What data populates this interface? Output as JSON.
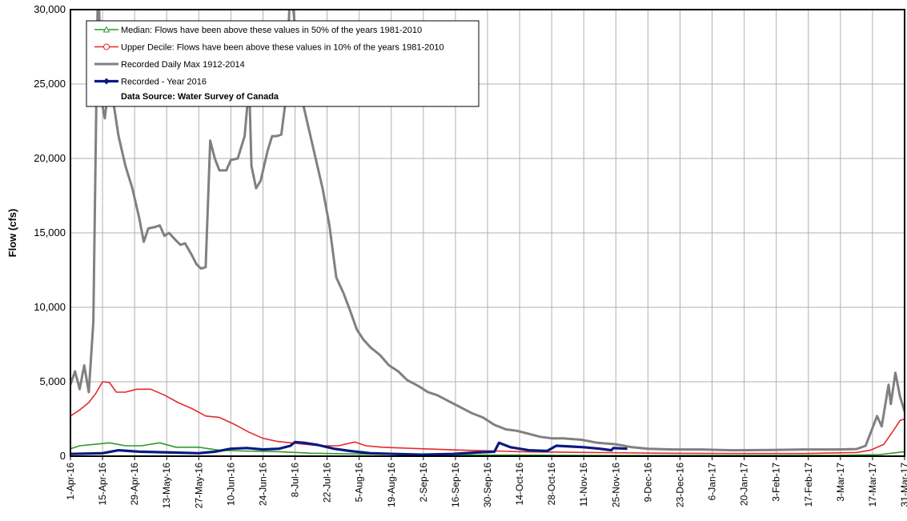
{
  "chart_data": {
    "type": "line",
    "ylabel": "Flow (cfs)",
    "annotation": "Data Source: Water Survey of Canada",
    "xlim": [
      "2016-04-01",
      "2017-03-31"
    ],
    "ylim": [
      0,
      30000
    ],
    "grid": true,
    "legend": "upper left",
    "yticks": [
      0,
      {
        "value": 5000,
        "label": "5,000"
      },
      {
        "value": 10000,
        "label": "10,000"
      },
      {
        "value": 15000,
        "label": "15,000"
      },
      {
        "value": 20000,
        "label": "20,000"
      },
      {
        "value": 25000,
        "label": "25,000"
      },
      {
        "value": 30000,
        "label": "30,000"
      }
    ],
    "xticks": [
      {
        "value": "2016-04-01",
        "label": "1-Apr-16"
      },
      {
        "value": "2016-04-15",
        "label": "15-Apr-16"
      },
      {
        "value": "2016-04-29",
        "label": "29-Apr-16"
      },
      {
        "value": "2016-05-13",
        "label": "13-May-16"
      },
      {
        "value": "2016-05-27",
        "label": "27-May-16"
      },
      {
        "value": "2016-06-10",
        "label": "10-Jun-16"
      },
      {
        "value": "2016-06-24",
        "label": "24-Jun-16"
      },
      {
        "value": "2016-07-08",
        "label": "8-Jul-16"
      },
      {
        "value": "2016-07-22",
        "label": "22-Jul-16"
      },
      {
        "value": "2016-08-05",
        "label": "5-Aug-16"
      },
      {
        "value": "2016-08-19",
        "label": "19-Aug-16"
      },
      {
        "value": "2016-09-02",
        "label": "2-Sep-16"
      },
      {
        "value": "2016-09-16",
        "label": "16-Sep-16"
      },
      {
        "value": "2016-09-30",
        "label": "30-Sep-16"
      },
      {
        "value": "2016-10-14",
        "label": "14-Oct-16"
      },
      {
        "value": "2016-10-28",
        "label": "28-Oct-16"
      },
      {
        "value": "2016-11-11",
        "label": "11-Nov-16"
      },
      {
        "value": "2016-11-25",
        "label": "25-Nov-16"
      },
      {
        "value": "2016-12-09",
        "label": "9-Dec-16"
      },
      {
        "value": "2016-12-23",
        "label": "23-Dec-16"
      },
      {
        "value": "2017-01-06",
        "label": "6-Jan-17"
      },
      {
        "value": "2017-01-20",
        "label": "20-Jan-17"
      },
      {
        "value": "2017-02-03",
        "label": "3-Feb-17"
      },
      {
        "value": "2017-02-17",
        "label": "17-Feb-17"
      },
      {
        "value": "2017-03-03",
        "label": "3-Mar-17"
      },
      {
        "value": "2017-03-17",
        "label": "17-Mar-17"
      },
      {
        "value": "2017-03-31",
        "label": "31-Mar-17"
      }
    ],
    "series": [
      {
        "name": "Median: Flows have been above these values in 50% of the years 1981-2010",
        "color": "#2e9a2e",
        "marker": "triangle",
        "x": [
          "2016-04-01",
          "2016-04-05",
          "2016-04-12",
          "2016-04-18",
          "2016-04-25",
          "2016-05-02",
          "2016-05-10",
          "2016-05-17",
          "2016-05-27",
          "2016-06-05",
          "2016-06-15",
          "2016-07-01",
          "2016-07-15",
          "2016-08-01",
          "2016-09-01",
          "2016-10-01",
          "2016-11-01",
          "2016-12-01",
          "2017-01-01",
          "2017-02-01",
          "2017-03-01",
          "2017-03-20",
          "2017-03-31"
        ],
        "values": [
          500,
          700,
          800,
          900,
          700,
          700,
          900,
          600,
          600,
          400,
          350,
          300,
          200,
          150,
          100,
          80,
          60,
          50,
          50,
          50,
          60,
          100,
          300
        ]
      },
      {
        "name": "Upper Decile: Flows have been above these values in 10% of the years 1981-2010",
        "color": "#e8282b",
        "marker": "circle",
        "x": [
          "2016-04-01",
          "2016-04-05",
          "2016-04-09",
          "2016-04-12",
          "2016-04-15",
          "2016-04-18",
          "2016-04-21",
          "2016-04-25",
          "2016-04-30",
          "2016-05-06",
          "2016-05-12",
          "2016-05-18",
          "2016-05-24",
          "2016-05-30",
          "2016-06-05",
          "2016-06-12",
          "2016-06-18",
          "2016-06-24",
          "2016-06-30",
          "2016-07-06",
          "2016-07-12",
          "2016-07-20",
          "2016-07-27",
          "2016-08-03",
          "2016-08-08",
          "2016-08-15",
          "2016-09-01",
          "2016-09-20",
          "2016-10-15",
          "2016-11-15",
          "2016-12-15",
          "2017-01-15",
          "2017-02-15",
          "2017-03-10",
          "2017-03-16",
          "2017-03-22",
          "2017-03-26",
          "2017-03-29",
          "2017-03-31"
        ],
        "values": [
          2700,
          3100,
          3600,
          4200,
          5000,
          4950,
          4300,
          4300,
          4500,
          4500,
          4100,
          3600,
          3200,
          2700,
          2600,
          2100,
          1600,
          1200,
          1000,
          900,
          800,
          700,
          700,
          950,
          700,
          600,
          500,
          400,
          300,
          250,
          200,
          180,
          180,
          250,
          400,
          800,
          1700,
          2400,
          2500
        ]
      },
      {
        "name": "Recorded Daily Max 1912-2014",
        "color": "#808080",
        "marker": "none",
        "x": [
          "2016-04-01",
          "2016-04-03",
          "2016-04-05",
          "2016-04-07",
          "2016-04-09",
          "2016-04-11",
          "2016-04-13",
          "2016-04-15",
          "2016-04-16",
          "2016-04-17",
          "2016-04-20",
          "2016-04-22",
          "2016-04-25",
          "2016-04-28",
          "2016-05-01",
          "2016-05-03",
          "2016-05-05",
          "2016-05-08",
          "2016-05-10",
          "2016-05-12",
          "2016-05-14",
          "2016-05-17",
          "2016-05-19",
          "2016-05-21",
          "2016-05-24",
          "2016-05-26",
          "2016-05-28",
          "2016-05-30",
          "2016-06-01",
          "2016-06-03",
          "2016-06-05",
          "2016-06-08",
          "2016-06-10",
          "2016-06-13",
          "2016-06-16",
          "2016-06-18",
          "2016-06-19",
          "2016-06-21",
          "2016-06-23",
          "2016-06-26",
          "2016-06-28",
          "2016-06-30",
          "2016-07-02",
          "2016-07-04",
          "2016-07-06",
          "2016-07-11",
          "2016-07-14",
          "2016-07-17",
          "2016-07-20",
          "2016-07-23",
          "2016-07-26",
          "2016-07-29",
          "2016-08-01",
          "2016-08-04",
          "2016-08-07",
          "2016-08-10",
          "2016-08-14",
          "2016-08-18",
          "2016-08-22",
          "2016-08-26",
          "2016-08-31",
          "2016-09-04",
          "2016-09-08",
          "2016-09-13",
          "2016-09-18",
          "2016-09-23",
          "2016-09-28",
          "2016-10-03",
          "2016-10-08",
          "2016-10-13",
          "2016-10-18",
          "2016-10-23",
          "2016-10-28",
          "2016-11-02",
          "2016-11-10",
          "2016-11-17",
          "2016-11-25",
          "2016-12-02",
          "2016-12-09",
          "2016-12-20",
          "2017-01-01",
          "2017-01-15",
          "2017-02-01",
          "2017-02-15",
          "2017-03-01",
          "2017-03-10",
          "2017-03-14",
          "2017-03-16",
          "2017-03-19",
          "2017-03-21",
          "2017-03-24",
          "2017-03-25",
          "2017-03-27",
          "2017-03-29",
          "2017-03-31"
        ],
        "values": [
          4800,
          5700,
          4500,
          6100,
          4300,
          9000,
          32000,
          23500,
          22700,
          24000,
          23500,
          21500,
          19500,
          18000,
          16000,
          14400,
          15300,
          15400,
          15500,
          14800,
          15000,
          14500,
          14200,
          14300,
          13500,
          12900,
          12600,
          12700,
          21200,
          20000,
          19200,
          19200,
          19900,
          20000,
          21500,
          25000,
          19500,
          18000,
          18500,
          20500,
          21500,
          21500,
          21600,
          24000,
          32000,
          24000,
          22000,
          20000,
          18000,
          15500,
          12000,
          11000,
          9800,
          8500,
          7800,
          7300,
          6800,
          6100,
          5700,
          5100,
          4700,
          4300,
          4100,
          3700,
          3300,
          2900,
          2600,
          2100,
          1800,
          1700,
          1500,
          1300,
          1200,
          1200,
          1100,
          900,
          800,
          600,
          500,
          450,
          450,
          400,
          420,
          450,
          450,
          480,
          700,
          1500,
          2700,
          2000,
          4800,
          3500,
          5600,
          4000,
          3000
        ]
      },
      {
        "name": "Recorded - Year 2016",
        "color": "#0a1a80",
        "marker": "diamond",
        "x": [
          "2016-04-01",
          "2016-04-15",
          "2016-04-22",
          "2016-05-01",
          "2016-05-15",
          "2016-05-27",
          "2016-06-03",
          "2016-06-10",
          "2016-06-17",
          "2016-06-24",
          "2016-07-01",
          "2016-07-06",
          "2016-07-08",
          "2016-07-12",
          "2016-07-18",
          "2016-07-25",
          "2016-08-01",
          "2016-08-10",
          "2016-08-20",
          "2016-09-01",
          "2016-09-15",
          "2016-09-25",
          "2016-10-03",
          "2016-10-05",
          "2016-10-10",
          "2016-10-18",
          "2016-10-26",
          "2016-10-30",
          "2016-11-05",
          "2016-11-11",
          "2016-11-18",
          "2016-11-23",
          "2016-11-24",
          "2016-11-30"
        ],
        "values": [
          150,
          200,
          400,
          300,
          250,
          200,
          300,
          500,
          550,
          450,
          500,
          700,
          950,
          900,
          750,
          500,
          350,
          200,
          150,
          100,
          150,
          250,
          300,
          900,
          600,
          400,
          350,
          700,
          650,
          600,
          500,
          400,
          550,
          500
        ]
      }
    ]
  }
}
